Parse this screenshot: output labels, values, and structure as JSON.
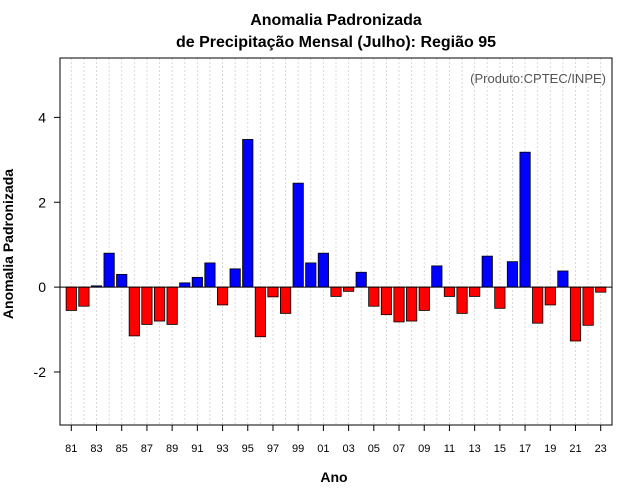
{
  "chart_data": {
    "type": "bar",
    "title_line1": "Anomalia Padronizada",
    "title_line2": "de Precipitação Mensal (Julho): Região 95",
    "xlabel": "Ano",
    "ylabel": "Anomalia Padronizada",
    "annotation": "(Produto:CPTEC/INPE)",
    "ylim": [
      -3.25,
      5.4
    ],
    "yticks": [
      -2,
      0,
      2,
      4
    ],
    "ytick_labels": [
      "-2",
      "0",
      "2",
      "4"
    ],
    "xtick_labels": [
      "81",
      "83",
      "85",
      "87",
      "89",
      "91",
      "93",
      "95",
      "97",
      "99",
      "01",
      "03",
      "05",
      "07",
      "09",
      "11",
      "13",
      "15",
      "17",
      "19",
      "21",
      "23"
    ],
    "categories": [
      "1981",
      "1982",
      "1983",
      "1984",
      "1985",
      "1986",
      "1987",
      "1988",
      "1989",
      "1990",
      "1991",
      "1992",
      "1993",
      "1994",
      "1995",
      "1996",
      "1997",
      "1998",
      "1999",
      "2000",
      "2001",
      "2002",
      "2003",
      "2004",
      "2005",
      "2006",
      "2007",
      "2008",
      "2009",
      "2010",
      "2011",
      "2012",
      "2013",
      "2014",
      "2015",
      "2016",
      "2017",
      "2018",
      "2019",
      "2020",
      "2021",
      "2022",
      "2023"
    ],
    "values": [
      -0.55,
      -0.45,
      0.03,
      0.8,
      0.3,
      -1.15,
      -0.88,
      -0.8,
      -0.88,
      0.1,
      0.23,
      0.57,
      -0.42,
      0.43,
      3.48,
      -1.17,
      -0.23,
      -0.62,
      2.45,
      0.57,
      0.8,
      -0.22,
      -0.1,
      0.35,
      -0.45,
      -0.65,
      -0.82,
      -0.8,
      -0.55,
      0.5,
      -0.22,
      -0.62,
      -0.22,
      0.73,
      -0.5,
      0.6,
      3.18,
      -0.85,
      -0.42,
      0.38,
      -1.27,
      -0.9,
      -0.12
    ],
    "positive_color": "#0000FF",
    "negative_color": "#FF0000",
    "grid": true
  }
}
